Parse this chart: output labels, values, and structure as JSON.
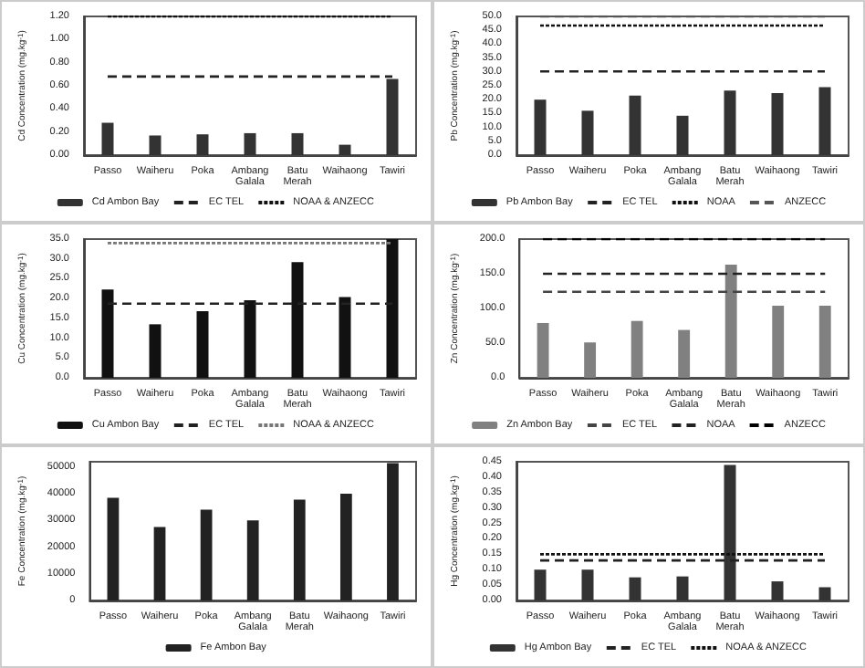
{
  "chart_data": [
    {
      "type": "bar",
      "ylabel": "Cd Concentration (mg.kg$^{-1}$)",
      "categories": [
        "Passo",
        "Waiheru",
        "Poka",
        "Ambang Galala",
        "Batu Merah",
        "Waihaong",
        "Tawiri"
      ],
      "legend": "bottom",
      "marker": "none",
      "ylim": [
        0,
        1.2
      ],
      "yticks": [
        {
          "value": 0,
          "label": "0.00"
        },
        {
          "value": 0.2,
          "label": "0.20"
        },
        {
          "value": 0.4,
          "label": "0.40"
        },
        {
          "value": 0.6,
          "label": "0.60"
        },
        {
          "value": 0.8,
          "label": "0.80"
        },
        {
          "value": 1,
          "label": "1.00"
        },
        {
          "value": 1.2,
          "label": "1.20"
        }
      ],
      "series": [
        {
          "name": "Cd Ambon Bay",
          "color": "#333333",
          "values": [
            0.28,
            0.17,
            0.18,
            0.19,
            0.19,
            0.09,
            0.66
          ]
        },
        {
          "name": "EC TEL",
          "type": "line",
          "line_style": "dashed",
          "color": "#222222",
          "values": [
            0.68,
            0.68,
            0.68,
            0.68,
            0.68,
            0.68,
            0.68
          ]
        },
        {
          "name": "NOAA & ANZECC",
          "type": "line",
          "line_style": "dotted",
          "color": "#111111",
          "values": [
            1.2,
            1.2,
            1.2,
            1.2,
            1.2,
            1.2,
            1.2
          ]
        }
      ]
    },
    {
      "type": "bar",
      "ylabel": "Pb Concentration (mg.kg$^{-1}$)",
      "categories": [
        "Passo",
        "Waiheru",
        "Poka",
        "Ambang Galala",
        "Batu Merah",
        "Waihaong",
        "Tawiri"
      ],
      "legend": "bottom",
      "marker": "none",
      "ylim": [
        0,
        50
      ],
      "yticks": [
        {
          "value": 0,
          "label": "0.0"
        },
        {
          "value": 5,
          "label": "5.0"
        },
        {
          "value": 10,
          "label": "10.0"
        },
        {
          "value": 15,
          "label": "15.0"
        },
        {
          "value": 20,
          "label": "20.0"
        },
        {
          "value": 25,
          "label": "25.0"
        },
        {
          "value": 30,
          "label": "30.0"
        },
        {
          "value": 35,
          "label": "35.0"
        },
        {
          "value": 40,
          "label": "40.0"
        },
        {
          "value": 45,
          "label": "45.0"
        },
        {
          "value": 50,
          "label": "50.0"
        }
      ],
      "series": [
        {
          "name": "Pb Ambon Bay",
          "color": "#333333",
          "values": [
            20,
            16,
            21.5,
            14.2,
            23.3,
            22.4,
            24.5
          ]
        },
        {
          "name": "EC TEL",
          "type": "line",
          "line_style": "dashed",
          "color": "#222222",
          "values": [
            30.2,
            30.2,
            30.2,
            30.2,
            30.2,
            30.2,
            30.2
          ]
        },
        {
          "name": "NOAA",
          "type": "line",
          "line_style": "dotted",
          "color": "#111111",
          "values": [
            46.7,
            46.7,
            46.7,
            46.7,
            46.7,
            46.7,
            46.7
          ]
        },
        {
          "name": "ANZECC",
          "type": "line",
          "line_style": "dashed",
          "color": "#555555",
          "values": [
            50,
            50,
            50,
            50,
            50,
            50,
            50
          ]
        }
      ]
    },
    {
      "type": "bar",
      "ylabel": "Cu Concentration (mg.kg$^{-1}$)",
      "categories": [
        "Passo",
        "Waiheru",
        "Poka",
        "Ambang Galala",
        "Batu Merah",
        "Waihaong",
        "Tawiri"
      ],
      "legend": "bottom",
      "marker": "none",
      "ylim": [
        0,
        35
      ],
      "yticks": [
        {
          "value": 0,
          "label": "0.0"
        },
        {
          "value": 5,
          "label": "5.0"
        },
        {
          "value": 10,
          "label": "10.0"
        },
        {
          "value": 15,
          "label": "15.0"
        },
        {
          "value": 20,
          "label": "20.0"
        },
        {
          "value": 25,
          "label": "25.0"
        },
        {
          "value": 30,
          "label": "30.0"
        },
        {
          "value": 35,
          "label": "35.0"
        }
      ],
      "series": [
        {
          "name": "Cu Ambon Bay",
          "color": "#111111",
          "values": [
            22.3,
            13.5,
            16.8,
            19.6,
            29.2,
            20.4,
            35
          ]
        },
        {
          "name": "EC TEL",
          "type": "line",
          "line_style": "dashed",
          "color": "#222222",
          "values": [
            18.7,
            18.7,
            18.7,
            18.7,
            18.7,
            18.7,
            18.7
          ]
        },
        {
          "name": "NOAA & ANZECC",
          "type": "line",
          "line_style": "dotted",
          "color": "#777777",
          "values": [
            34,
            34,
            34,
            34,
            34,
            34,
            34
          ]
        }
      ]
    },
    {
      "type": "bar",
      "ylabel": "Zn Concentration (mg.kg$^{-1}$)",
      "categories": [
        "Passo",
        "Waiheru",
        "Poka",
        "Ambang Galala",
        "Batu Merah",
        "Waihaong",
        "Tawiri"
      ],
      "legend": "bottom",
      "marker": "none",
      "ylim": [
        0,
        200
      ],
      "yticks": [
        {
          "value": 0,
          "label": "0.0"
        },
        {
          "value": 50,
          "label": "50.0"
        },
        {
          "value": 100,
          "label": "100.0"
        },
        {
          "value": 150,
          "label": "150.0"
        },
        {
          "value": 200,
          "label": "200.0"
        }
      ],
      "series": [
        {
          "name": "Zn Ambon Bay",
          "color": "#808080",
          "values": [
            79,
            51,
            82,
            69,
            163,
            104,
            104
          ]
        },
        {
          "name": "EC TEL",
          "type": "line",
          "line_style": "dashed",
          "color": "#444444",
          "values": [
            124,
            124,
            124,
            124,
            124,
            124,
            124
          ]
        },
        {
          "name": "NOAA",
          "type": "line",
          "line_style": "dashed",
          "color": "#222222",
          "values": [
            150,
            150,
            150,
            150,
            150,
            150,
            150
          ]
        },
        {
          "name": "ANZECC",
          "type": "line",
          "line_style": "dashed",
          "color": "#000000",
          "values": [
            200,
            200,
            200,
            200,
            200,
            200,
            200
          ]
        }
      ]
    },
    {
      "type": "bar",
      "ylabel": "Fe Concentration (mg.kg$^{-1}$)",
      "categories": [
        "Passo",
        "Waiheru",
        "Poka",
        "Ambang Galala",
        "Batu Merah",
        "Waihaong",
        "Tawiri"
      ],
      "legend": "bottom",
      "ylim": [
        0,
        52000
      ],
      "yticks": [
        0,
        10000,
        20000,
        30000,
        40000,
        50000
      ],
      "series": [
        {
          "name": "Fe Ambon Bay",
          "color": "#222222",
          "values": [
            38500,
            27500,
            34000,
            30000,
            37800,
            40000,
            51500
          ]
        }
      ]
    },
    {
      "type": "bar",
      "ylabel": "Hg Concentration (mg.kg$^{-1}$)",
      "categories": [
        "Passo",
        "Waiheru",
        "Poka",
        "Ambang Galala",
        "Batu Merah",
        "Waihaong",
        "Tawiri"
      ],
      "legend": "bottom",
      "marker": "none",
      "ylim": [
        0,
        0.45
      ],
      "yticks": [
        {
          "value": 0,
          "label": "0.00"
        },
        {
          "value": 0.05,
          "label": "0.05"
        },
        {
          "value": 0.1,
          "label": "0.10"
        },
        {
          "value": 0.15,
          "label": "0.15"
        },
        {
          "value": 0.2,
          "label": "0.20"
        },
        {
          "value": 0.25,
          "label": "0.25"
        },
        {
          "value": 0.3,
          "label": "0.30"
        },
        {
          "value": 0.35,
          "label": "0.35"
        },
        {
          "value": 0.4,
          "label": "0.40"
        },
        {
          "value": 0.45,
          "label": "0.45"
        }
      ],
      "series": [
        {
          "name": "Hg Ambon Bay",
          "color": "#333333",
          "values": [
            0.1,
            0.1,
            0.075,
            0.078,
            0.44,
            0.062,
            0.043
          ]
        },
        {
          "name": "EC TEL",
          "type": "line",
          "line_style": "dashed",
          "color": "#222222",
          "values": [
            0.13,
            0.13,
            0.13,
            0.13,
            0.13,
            0.13,
            0.13
          ]
        },
        {
          "name": "NOAA & ANZECC",
          "type": "line",
          "line_style": "dotted",
          "color": "#111111",
          "values": [
            0.15,
            0.15,
            0.15,
            0.15,
            0.15,
            0.15,
            0.15
          ]
        }
      ]
    }
  ]
}
